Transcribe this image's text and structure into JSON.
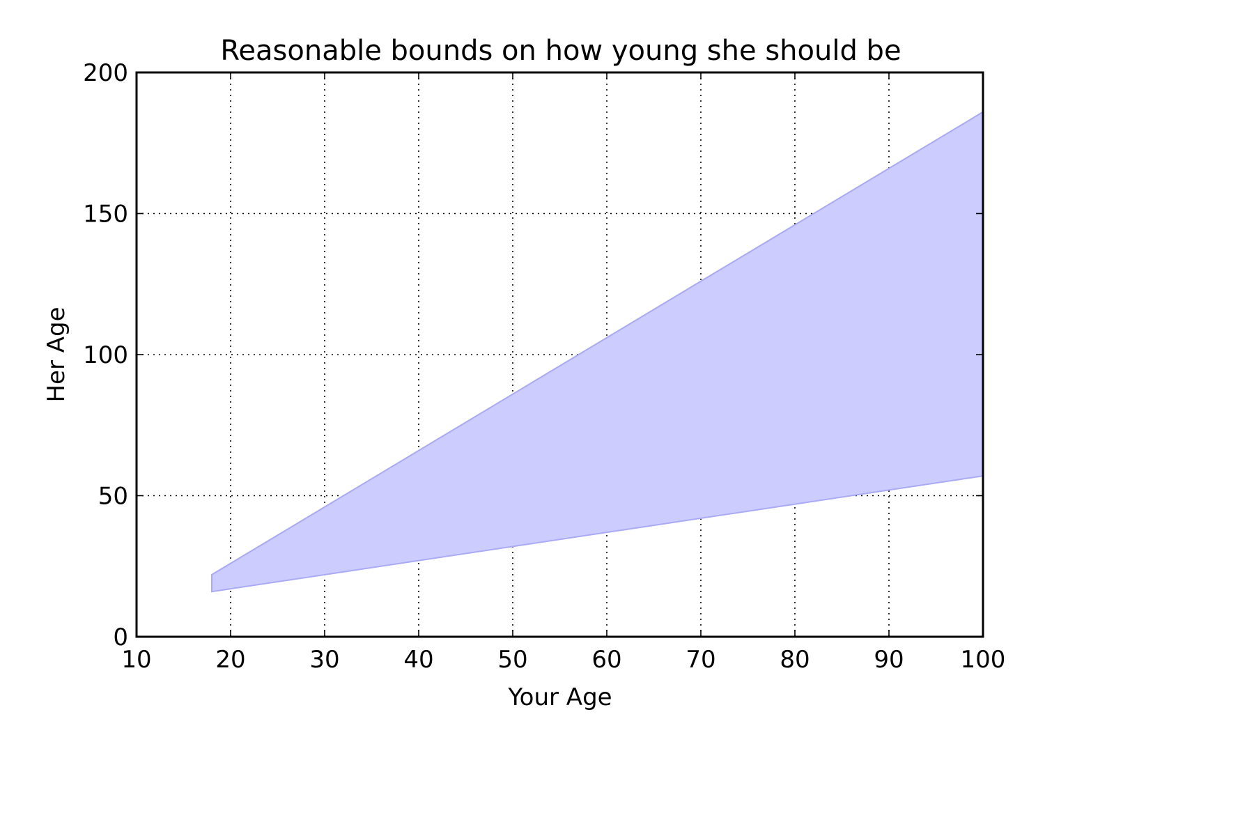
{
  "chart_data": {
    "type": "area",
    "title": "Reasonable bounds on how young she should be",
    "xlabel": "Your Age",
    "ylabel": "Her Age",
    "xlim": [
      10,
      100
    ],
    "ylim": [
      0,
      200
    ],
    "xticks": [
      10,
      20,
      30,
      40,
      50,
      60,
      70,
      80,
      90,
      100
    ],
    "yticks": [
      0,
      50,
      100,
      150,
      200
    ],
    "grid": true,
    "fill_color": "#ccccff",
    "edge_color": "#a9a9f5",
    "x": [
      18,
      100
    ],
    "lower": [
      16,
      57
    ],
    "upper": [
      22,
      186
    ]
  }
}
